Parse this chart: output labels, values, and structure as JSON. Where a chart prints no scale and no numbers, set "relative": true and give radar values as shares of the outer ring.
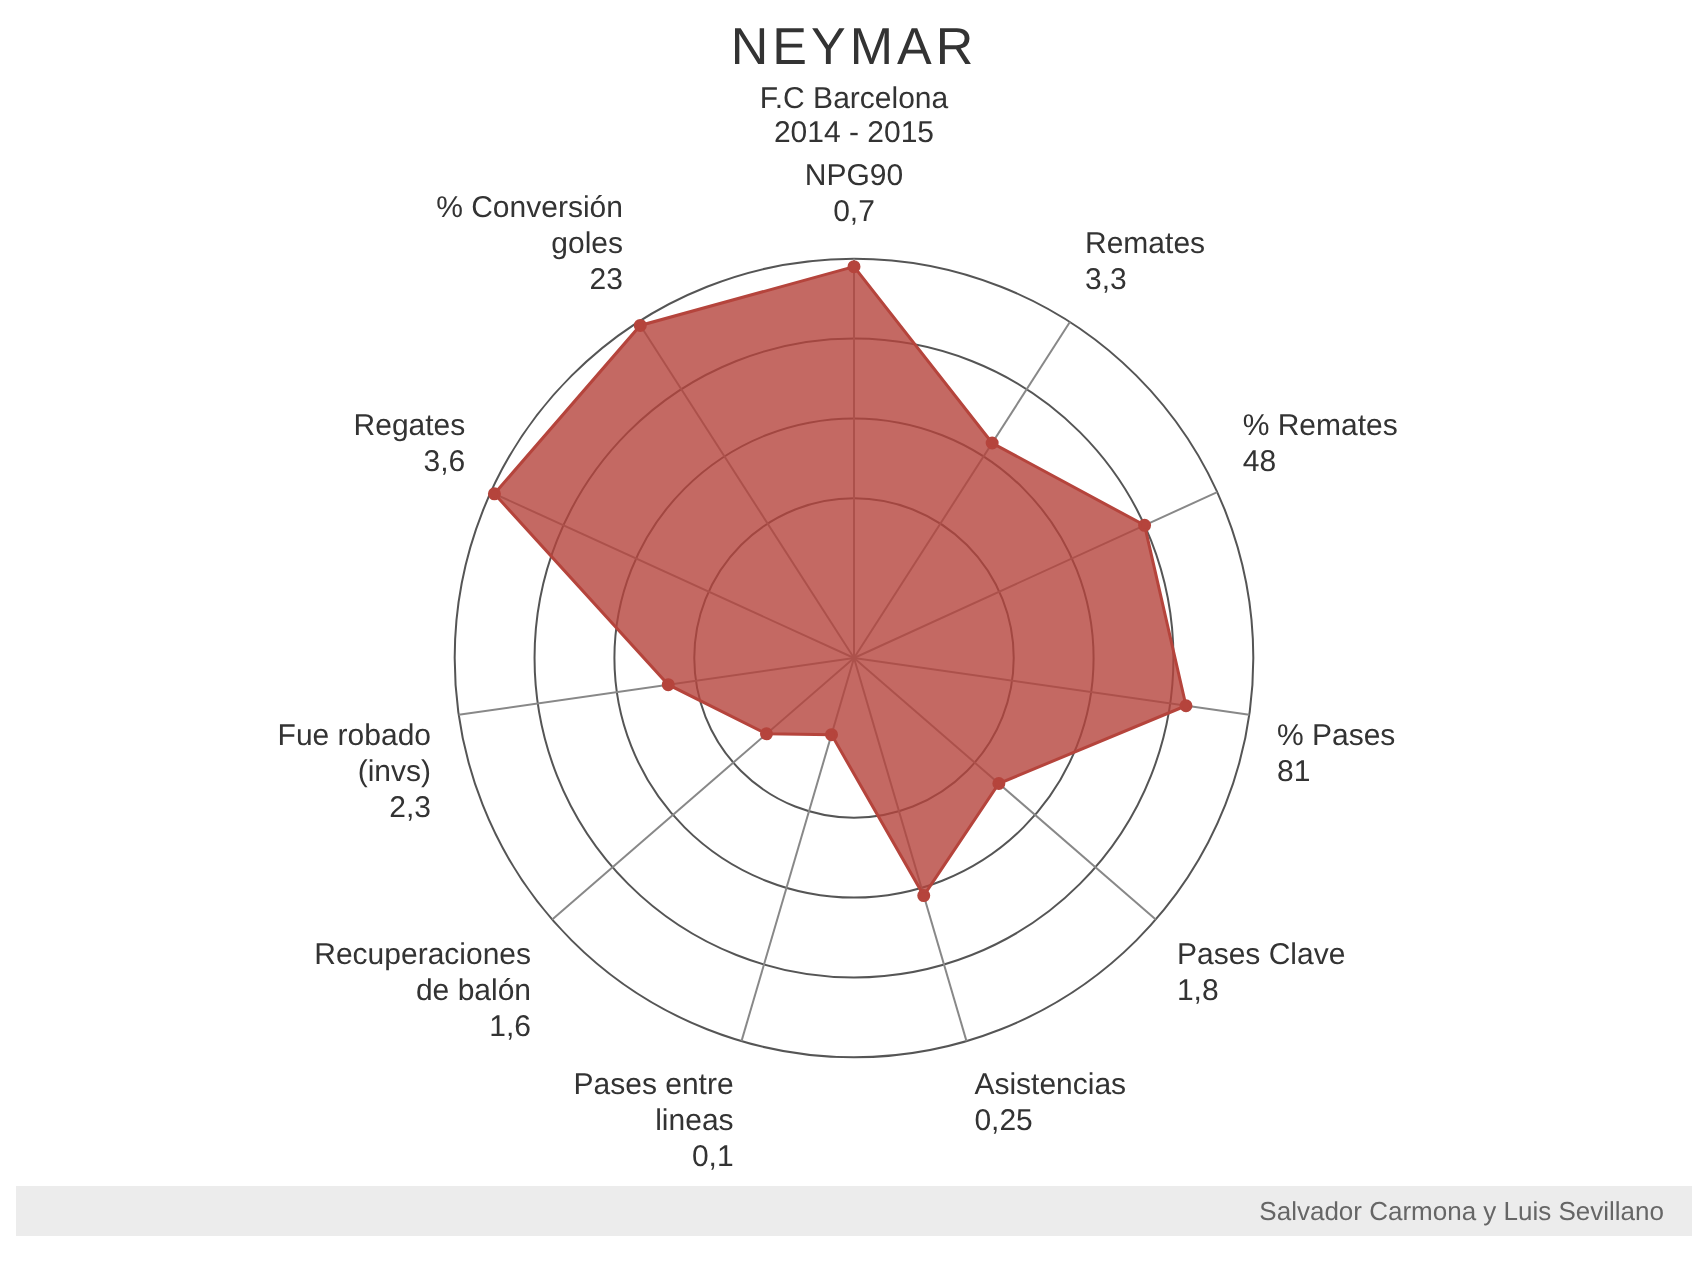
{
  "chart_data": {
    "type": "radar",
    "title": "NEYMAR",
    "subtitle": "F.C Barcelona",
    "annotations": [
      "2014 - 2015",
      "Salvador Carmona y Luis Sevillano"
    ],
    "categories": [
      "NPG90 0,7",
      "Remates 3,3",
      "% Remates 48",
      "% Pases 81",
      "Pases Clave 1,8",
      "Asistencias 0,25",
      "Pases entre lineas 0,1",
      "Recuperaciones de balón 1,6",
      "Fue robado (invs) 2,3",
      "Regates 3,6",
      "% Conversión goles 23"
    ],
    "relative": true,
    "series": [
      {
        "color": "#b5443c",
        "values": [
          0.98,
          0.64,
          0.8,
          0.84,
          0.48,
          0.62,
          0.2,
          0.29,
          0.47,
          0.99,
          0.99
        ]
      }
    ],
    "grid": true,
    "legend": false,
    "marker": "circle"
  }
}
